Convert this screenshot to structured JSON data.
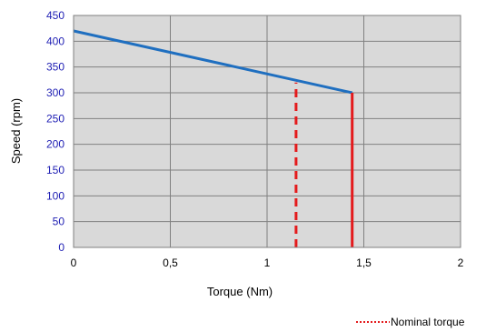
{
  "chart_data": {
    "type": "line",
    "xlabel": "Torque (Nm)",
    "ylabel": "Speed (rpm)",
    "xlim": [
      0,
      2
    ],
    "ylim": [
      0,
      450
    ],
    "x_ticks": [
      "0",
      "0,5",
      "1",
      "1,5",
      "2"
    ],
    "x_tick_values": [
      0,
      0.5,
      1,
      1.5,
      2
    ],
    "y_ticks": [
      "0",
      "50",
      "100",
      "150",
      "200",
      "250",
      "300",
      "350",
      "400",
      "450"
    ],
    "y_tick_values": [
      0,
      50,
      100,
      150,
      200,
      250,
      300,
      350,
      400,
      450
    ],
    "grid": true,
    "legend_position": "bottom-right",
    "plot_background": "#d9d9d9",
    "series": [
      {
        "kind": "speed-torque curve",
        "color": "#1f6fc0",
        "style": "solid",
        "points": [
          [
            0,
            420
          ],
          [
            1.44,
            300
          ]
        ]
      },
      {
        "name": "Nominal torque",
        "color": "#e41a1c",
        "style": "dashed",
        "points": [
          [
            1.15,
            0
          ],
          [
            1.15,
            320
          ]
        ]
      },
      {
        "kind": "maximum torque",
        "color": "#e41a1c",
        "style": "solid",
        "points": [
          [
            1.44,
            0
          ],
          [
            1.44,
            300
          ]
        ]
      }
    ]
  }
}
